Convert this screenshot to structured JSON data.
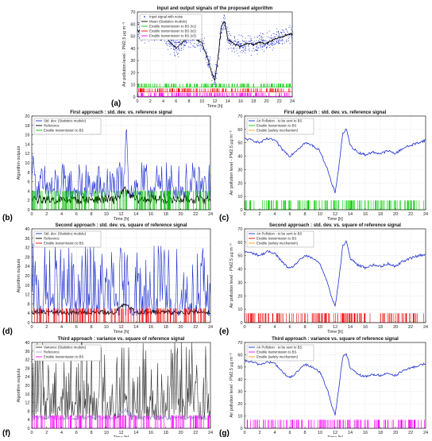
{
  "chart_data": [
    {
      "id": "a",
      "type": "line",
      "panel_label": "(a)",
      "title": "Input and output signals of the proposed algorithm",
      "xlabel": "Time [h]",
      "ylabel": "Air pollution level - PM2.5 µg m⁻³",
      "xlim": [
        0,
        24
      ],
      "ylim": [
        0,
        70
      ],
      "xticks": [
        0,
        2,
        4,
        6,
        8,
        10,
        12,
        14,
        16,
        18,
        20,
        22,
        24
      ],
      "yticks": [
        0,
        10,
        20,
        30,
        40,
        50,
        60,
        70
      ],
      "grid": true,
      "legend_position": "top-left",
      "series": [
        {
          "name": "Input signal with noise",
          "color": "#1f2fd0",
          "kind": "noise",
          "spread": 4.5
        },
        {
          "name": "Mean (Statistics module)",
          "color": "#000000",
          "kind": "line"
        },
        {
          "name": "Enable transmission to BS (v1)",
          "color": "#00cc00",
          "kind": "events",
          "level": 8,
          "height": 3
        },
        {
          "name": "Enable transmission to BS (v2)",
          "color": "#ee0000",
          "kind": "events",
          "level": 4,
          "height": 3
        },
        {
          "name": "Enable transmission to BS (v3)",
          "color": "#ff00ff",
          "kind": "events",
          "level": 0.5,
          "height": 3
        }
      ],
      "base_signal": {
        "x": [
          0,
          1,
          2,
          3,
          4,
          5,
          6,
          7,
          8,
          9,
          10,
          11,
          11.5,
          12,
          12.5,
          13,
          13.5,
          14,
          15,
          16,
          17,
          18,
          19,
          20,
          21,
          22,
          23,
          24
        ],
        "y": [
          55,
          52,
          50,
          53,
          52,
          45,
          40,
          45,
          50,
          48,
          44,
          30,
          20,
          14,
          32,
          58,
          63,
          48,
          43,
          42,
          44,
          43,
          45,
          44,
          47,
          49,
          51,
          52
        ]
      }
    },
    {
      "id": "b",
      "type": "line",
      "panel_label": "(b)",
      "title": "First approach : std. dev. vs. reference signal",
      "xlabel": "Time [h]",
      "ylabel": "Algorithm outputs",
      "xlim": [
        0,
        24
      ],
      "ylim": [
        0,
        20
      ],
      "xticks": [
        0,
        2,
        4,
        6,
        8,
        10,
        12,
        14,
        16,
        18,
        20,
        22,
        24
      ],
      "yticks": [
        0,
        2,
        4,
        6,
        8,
        10,
        12,
        14,
        16,
        18,
        20
      ],
      "grid": true,
      "legend_position": "top-left",
      "series": [
        {
          "name": "Std. dev. (Statistics module)",
          "color": "#1f2fd0",
          "kind": "noise-positive",
          "base": 2.5,
          "spread": 3.5
        },
        {
          "name": "Reference",
          "color": "#000000",
          "kind": "line"
        },
        {
          "name": "Enable transmission to BS",
          "color": "#00bb00",
          "kind": "events",
          "level": 0,
          "height": 4
        }
      ],
      "base_signal": {
        "x": [
          0,
          2,
          4,
          6,
          8,
          10,
          11,
          12,
          12.5,
          13,
          14,
          16,
          18,
          20,
          22,
          24
        ],
        "y": [
          2.2,
          2.2,
          2.1,
          2.1,
          2.2,
          2.2,
          2.1,
          3.3,
          4.2,
          3.3,
          2.2,
          2.2,
          2.1,
          2.2,
          2.2,
          2.2
        ]
      },
      "peaks": [
        {
          "x": 12.7,
          "y": 19
        },
        {
          "x": 0.2,
          "y": 12
        }
      ]
    },
    {
      "id": "c",
      "type": "line",
      "panel_label": "(c)",
      "title": "First approach : std. dev. vs. reference signal",
      "xlabel": "Time [h]",
      "ylabel": "Air pollution level - PM2.5 µg m⁻³",
      "xlim": [
        0,
        24
      ],
      "ylim": [
        0,
        70
      ],
      "xticks": [
        0,
        2,
        4,
        6,
        8,
        10,
        12,
        14,
        16,
        18,
        20,
        22,
        24
      ],
      "yticks": [
        0,
        10,
        20,
        30,
        40,
        50,
        60,
        70
      ],
      "grid": true,
      "legend_position": "top-left",
      "series": [
        {
          "name": "Air Pollution - to be sent to BS",
          "color": "#1f2fd0",
          "kind": "line"
        },
        {
          "name": "Enable transmission to BS",
          "color": "#00cc00",
          "kind": "events",
          "level": 0,
          "height": 7
        },
        {
          "name": "Enable (safety mechanism)",
          "color": "#ff9900",
          "kind": "none"
        }
      ],
      "base_signal": {
        "x": [
          0,
          1,
          2,
          3,
          4,
          5,
          6,
          7,
          8,
          9,
          10,
          11,
          11.5,
          12,
          12.5,
          13,
          13.5,
          14,
          15,
          16,
          17,
          18,
          19,
          20,
          21,
          22,
          23,
          24
        ],
        "y": [
          53,
          52,
          50,
          53,
          52,
          45,
          40,
          45,
          50,
          48,
          44,
          30,
          20,
          13,
          32,
          57,
          60,
          48,
          43,
          41,
          43,
          42,
          44,
          42,
          46,
          48,
          50,
          52
        ]
      }
    },
    {
      "id": "d",
      "type": "line",
      "panel_label": "(d)",
      "title": "Second approach : std. dev. vs. square of reference signal",
      "xlabel": "Time [h]",
      "ylabel": "Algorithm outputs",
      "xlim": [
        0,
        24
      ],
      "ylim": [
        0,
        40
      ],
      "xticks": [
        0,
        2,
        4,
        6,
        8,
        10,
        12,
        14,
        16,
        18,
        20,
        22,
        24
      ],
      "yticks": [
        0,
        4,
        8,
        12,
        16,
        20,
        24,
        28,
        32,
        36,
        40
      ],
      "grid": true,
      "legend_position": "top-left",
      "series": [
        {
          "name": "Std. dev. (Statistics module)",
          "color": "#1f2fd0",
          "kind": "noise-positive",
          "base": 3,
          "spread": 14
        },
        {
          "name": "Reference",
          "color": "#000000",
          "kind": "line"
        },
        {
          "name": "Enable transmission to BS",
          "color": "#ee0000",
          "kind": "events",
          "level": 0,
          "height": 6
        }
      ],
      "base_signal": {
        "x": [
          0,
          2,
          4,
          6,
          8,
          10,
          11,
          12,
          12.5,
          13,
          14,
          16,
          18,
          20,
          22,
          24
        ],
        "y": [
          4.5,
          4.5,
          4.3,
          4.3,
          4.5,
          4.4,
          4.2,
          6.5,
          8,
          6.5,
          4.5,
          4.5,
          4.3,
          4.5,
          4.5,
          4.5
        ]
      },
      "peaks": []
    },
    {
      "id": "e",
      "type": "line",
      "panel_label": "(e)",
      "title": "Second approach : std. dev. vs. square of reference signal",
      "xlabel": "Time [h]",
      "ylabel": "Air pollution level - PM2.5 µg m⁻³",
      "xlim": [
        0,
        24
      ],
      "ylim": [
        0,
        70
      ],
      "xticks": [
        0,
        2,
        4,
        6,
        8,
        10,
        12,
        14,
        16,
        18,
        20,
        22,
        24
      ],
      "yticks": [
        0,
        10,
        20,
        30,
        40,
        50,
        60,
        70
      ],
      "grid": true,
      "legend_position": "top-left",
      "series": [
        {
          "name": "Air Pollution - to be sent to BS",
          "color": "#1f2fd0",
          "kind": "line"
        },
        {
          "name": "Enable transmission to BS",
          "color": "#ee0000",
          "kind": "events",
          "level": 0,
          "height": 7
        },
        {
          "name": "Enable (safety mechanism)",
          "color": "#ff9900",
          "kind": "none"
        }
      ],
      "base_signal": {
        "x": [
          0,
          1,
          2,
          3,
          4,
          5,
          6,
          7,
          8,
          9,
          10,
          11,
          11.5,
          12,
          12.5,
          13,
          13.5,
          14,
          15,
          16,
          17,
          18,
          19,
          20,
          21,
          22,
          23,
          24
        ],
        "y": [
          53,
          52,
          50,
          53,
          52,
          45,
          40,
          45,
          50,
          48,
          44,
          30,
          20,
          12,
          32,
          57,
          61,
          48,
          43,
          41,
          43,
          42,
          44,
          42,
          46,
          48,
          50,
          51
        ]
      }
    },
    {
      "id": "f",
      "type": "line",
      "panel_label": "(f)",
      "title": "Third approach : variance vs. square of reference signal",
      "xlabel": "Time [h]",
      "ylabel": "Algorithm outputs",
      "xlim": [
        0,
        24
      ],
      "ylim": [
        0,
        40
      ],
      "xticks": [
        0,
        2,
        4,
        6,
        8,
        10,
        12,
        14,
        16,
        18,
        20,
        22,
        24
      ],
      "yticks": [
        0,
        4,
        8,
        12,
        16,
        20,
        24,
        28,
        32,
        36,
        40
      ],
      "grid": true,
      "legend_position": "top-left",
      "series": [
        {
          "name": "Variance (Statistics module)",
          "color": "#333333",
          "kind": "noise-positive",
          "base": 4,
          "spread": 18
        },
        {
          "name": "Reference",
          "color": "#9999dd",
          "kind": "line"
        },
        {
          "name": "Enable transmission to BS",
          "color": "#ff00ff",
          "kind": "events",
          "level": 0,
          "height": 6
        }
      ],
      "base_signal": {
        "x": [
          0,
          2,
          4,
          6,
          8,
          10,
          11,
          12,
          12.5,
          13,
          14,
          16,
          18,
          20,
          22,
          24
        ],
        "y": [
          5,
          5,
          4.8,
          4.8,
          5,
          5,
          4.7,
          7,
          9,
          7,
          5,
          5,
          4.8,
          5,
          5,
          5
        ]
      },
      "peaks": []
    },
    {
      "id": "g",
      "type": "line",
      "panel_label": "(g)",
      "title": "Third approach : variance vs. square of reference signal",
      "xlabel": "Time [h]",
      "ylabel": "Air pollution level - PM2.5 µg m⁻³",
      "xlim": [
        0,
        24
      ],
      "ylim": [
        0,
        70
      ],
      "xticks": [
        0,
        2,
        4,
        6,
        8,
        10,
        12,
        14,
        16,
        18,
        20,
        22,
        24
      ],
      "yticks": [
        0,
        10,
        20,
        30,
        40,
        50,
        60,
        70
      ],
      "grid": true,
      "legend_position": "top-left",
      "series": [
        {
          "name": "Air Pollution - to be sent to BS",
          "color": "#1f2fd0",
          "kind": "line"
        },
        {
          "name": "Enable transmission to BS",
          "color": "#ff00ff",
          "kind": "events",
          "level": 0,
          "height": 7
        },
        {
          "name": "Enable (safety mechanism)",
          "color": "#ff9900",
          "kind": "none"
        }
      ],
      "base_signal": {
        "x": [
          0,
          1,
          2,
          3,
          4,
          5,
          6,
          7,
          8,
          9,
          10,
          11,
          11.5,
          12,
          12.5,
          13,
          13.5,
          14,
          15,
          16,
          17,
          18,
          19,
          20,
          21,
          22,
          23,
          24
        ],
        "y": [
          55,
          54,
          52,
          54,
          53,
          46,
          41,
          46,
          52,
          50,
          46,
          31,
          20,
          11,
          33,
          58,
          61,
          49,
          44,
          42,
          44,
          43,
          45,
          43,
          47,
          49,
          51,
          53
        ]
      }
    }
  ]
}
